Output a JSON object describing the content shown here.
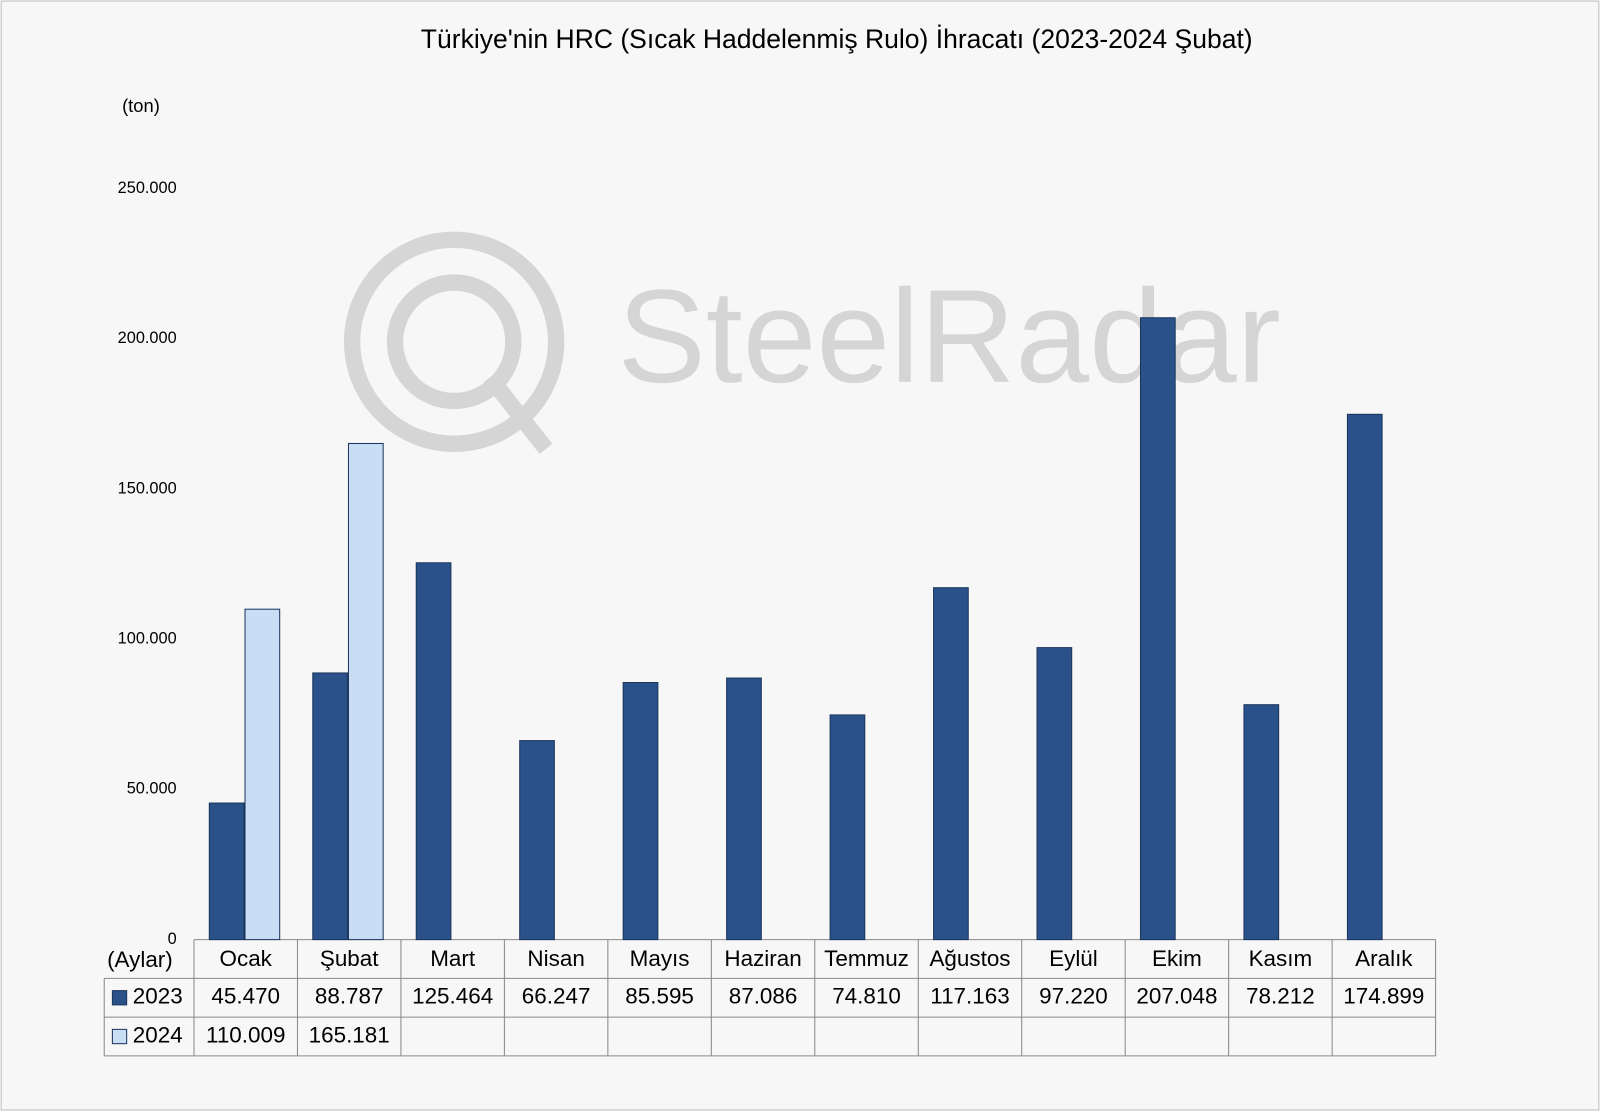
{
  "chart_data": {
    "type": "bar",
    "title": "Türkiye'nin HRC (Sıcak Haddelenmiş Rulo) İhracatı (2023-2024 Şubat)",
    "y_label": "(ton)",
    "x_label": "(Aylar)",
    "watermark": "SteelRadar",
    "categories": [
      "Ocak",
      "Şubat",
      "Mart",
      "Nisan",
      "Mayıs",
      "Haziran",
      "Temmuz",
      "Ağustos",
      "Eylül",
      "Ekim",
      "Kasım",
      "Aralık"
    ],
    "series": [
      {
        "name": "2023",
        "color": "#2a5189",
        "values": [
          45470,
          88787,
          125464,
          66247,
          85595,
          87086,
          74810,
          117163,
          97220,
          207048,
          78212,
          174899
        ],
        "value_labels": [
          "45.470",
          "88.787",
          "125.464",
          "66.247",
          "85.595",
          "87.086",
          "74.810",
          "117.163",
          "97.220",
          "207.048",
          "78.212",
          "174.899"
        ]
      },
      {
        "name": "2024",
        "color": "#c9ddf5",
        "values": [
          110009,
          165181,
          null,
          null,
          null,
          null,
          null,
          null,
          null,
          null,
          null,
          null
        ],
        "value_labels": [
          "110.009",
          "165.181",
          null,
          null,
          null,
          null,
          null,
          null,
          null,
          null,
          null,
          null
        ]
      }
    ],
    "ylim": [
      0,
      250000
    ],
    "yticks": [
      0,
      {
        "value": 50000,
        "label": "50.000"
      },
      {
        "value": 100000,
        "label": "100.000"
      },
      {
        "value": 150000,
        "label": "150.000"
      },
      {
        "value": 200000,
        "label": "200.000"
      },
      {
        "value": 250000,
        "label": "250.000"
      }
    ],
    "grid": false
  }
}
